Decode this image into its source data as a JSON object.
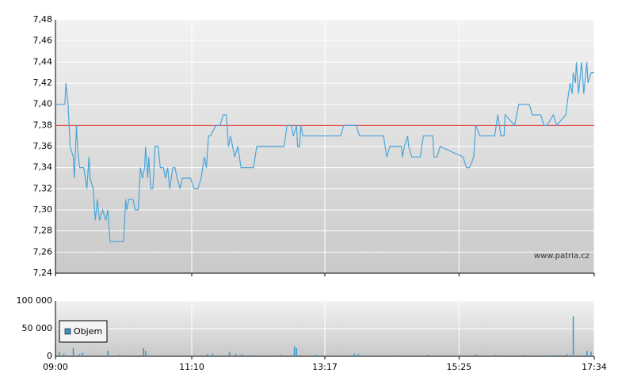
{
  "chart_data": [
    {
      "type": "line",
      "color": "#4aa6d8",
      "x": [
        0,
        9,
        10,
        12,
        14,
        17,
        18,
        20,
        21,
        23,
        27,
        30,
        32,
        33,
        36,
        38,
        40,
        42,
        45,
        48,
        50,
        52,
        55,
        65,
        67,
        68,
        70,
        74,
        76,
        79,
        81,
        83,
        85,
        86,
        88,
        89,
        91,
        93,
        95,
        98,
        100,
        103,
        105,
        107,
        109,
        112,
        114,
        116,
        119,
        121,
        129,
        132,
        136,
        139,
        142,
        144,
        146,
        148,
        153,
        157,
        160,
        163,
        165,
        167,
        171,
        174,
        177,
        189,
        192,
        212,
        218,
        221,
        225,
        227,
        230,
        231,
        233,
        234,
        236,
        272,
        275,
        287,
        290,
        313,
        316,
        319,
        330,
        331,
        333,
        336,
        337,
        340,
        348,
        351,
        360,
        361,
        364,
        367,
        389,
        392,
        395,
        399,
        401,
        405,
        419,
        422,
        425,
        428,
        429,
        438,
        442,
        452,
        455,
        463,
        466,
        469,
        475,
        478,
        487,
        488,
        491,
        493,
        494,
        496,
        497,
        499,
        502,
        504,
        507,
        508,
        511,
        514
      ],
      "values": [
        7.4,
        7.4,
        7.42,
        7.4,
        7.36,
        7.35,
        7.33,
        7.38,
        7.36,
        7.34,
        7.34,
        7.32,
        7.35,
        7.33,
        7.32,
        7.29,
        7.31,
        7.29,
        7.3,
        7.29,
        7.3,
        7.27,
        7.27,
        7.27,
        7.31,
        7.3,
        7.31,
        7.31,
        7.3,
        7.3,
        7.34,
        7.33,
        7.34,
        7.36,
        7.33,
        7.35,
        7.32,
        7.32,
        7.36,
        7.36,
        7.34,
        7.34,
        7.33,
        7.34,
        7.32,
        7.34,
        7.34,
        7.33,
        7.32,
        7.33,
        7.33,
        7.32,
        7.32,
        7.33,
        7.35,
        7.34,
        7.37,
        7.37,
        7.38,
        7.38,
        7.39,
        7.39,
        7.36,
        7.37,
        7.35,
        7.36,
        7.34,
        7.34,
        7.36,
        7.36,
        7.36,
        7.38,
        7.38,
        7.37,
        7.38,
        7.36,
        7.36,
        7.38,
        7.37,
        7.37,
        7.38,
        7.38,
        7.37,
        7.37,
        7.35,
        7.36,
        7.36,
        7.35,
        7.36,
        7.37,
        7.36,
        7.35,
        7.35,
        7.37,
        7.37,
        7.35,
        7.35,
        7.36,
        7.35,
        7.34,
        7.34,
        7.35,
        7.38,
        7.37,
        7.37,
        7.39,
        7.37,
        7.37,
        7.39,
        7.38,
        7.4,
        7.4,
        7.39,
        7.39,
        7.38,
        7.38,
        7.39,
        7.38,
        7.39,
        7.4,
        7.42,
        7.41,
        7.43,
        7.42,
        7.44,
        7.41,
        7.44,
        7.41,
        7.44,
        7.42,
        7.43,
        7.43
      ],
      "xlim": [
        0,
        514
      ],
      "ylim": [
        7.24,
        7.48
      ],
      "yticks": [
        {
          "value": 7.24,
          "label": "7,24"
        },
        {
          "value": 7.26,
          "label": "7,26"
        },
        {
          "value": 7.28,
          "label": "7,28"
        },
        {
          "value": 7.3,
          "label": "7,30"
        },
        {
          "value": 7.32,
          "label": "7,32"
        },
        {
          "value": 7.34,
          "label": "7,34"
        },
        {
          "value": 7.36,
          "label": "7,36"
        },
        {
          "value": 7.38,
          "label": "7,38"
        },
        {
          "value": 7.4,
          "label": "7,40"
        },
        {
          "value": 7.42,
          "label": "7,42"
        },
        {
          "value": 7.44,
          "label": "7,44"
        },
        {
          "value": 7.46,
          "label": "7,46"
        },
        {
          "value": 7.48,
          "label": "7,48"
        }
      ],
      "reference_line": 7.38,
      "reference_color": "#e03a3a",
      "watermark": "www.patria.cz",
      "grid": true
    },
    {
      "type": "bar",
      "x": [
        4,
        8,
        17,
        23,
        26,
        50,
        61,
        84,
        86,
        132,
        145,
        150,
        166,
        172,
        178,
        189,
        215,
        228,
        230,
        249,
        285,
        289,
        325,
        355,
        386,
        401,
        420,
        446,
        469,
        476,
        488,
        494,
        507,
        511
      ],
      "series": [
        {
          "name": "Objem",
          "color": "#3a96c8",
          "values": [
            8000,
            5000,
            15000,
            4000,
            6000,
            10000,
            3000,
            15000,
            10000,
            3000,
            4000,
            5000,
            8000,
            5000,
            4000,
            3000,
            3000,
            18000,
            15000,
            3000,
            5000,
            4000,
            2000,
            3000,
            3000,
            4000,
            3000,
            3000,
            2000,
            3000,
            4000,
            72000,
            10000,
            8000
          ]
        }
      ],
      "xlim": [
        0,
        514
      ],
      "xticks": [
        {
          "value": 0,
          "label": "09:00"
        },
        {
          "value": 130,
          "label": "11:10"
        },
        {
          "value": 257,
          "label": "13:17"
        },
        {
          "value": 385,
          "label": "15:25"
        },
        {
          "value": 514,
          "label": "17:34"
        }
      ],
      "ylim": [
        0,
        100000
      ],
      "yticks": [
        0,
        {
          "value": 50000,
          "label": "50 000"
        },
        {
          "value": 100000,
          "label": "100 000"
        }
      ],
      "legend": "left",
      "grid": true
    }
  ]
}
